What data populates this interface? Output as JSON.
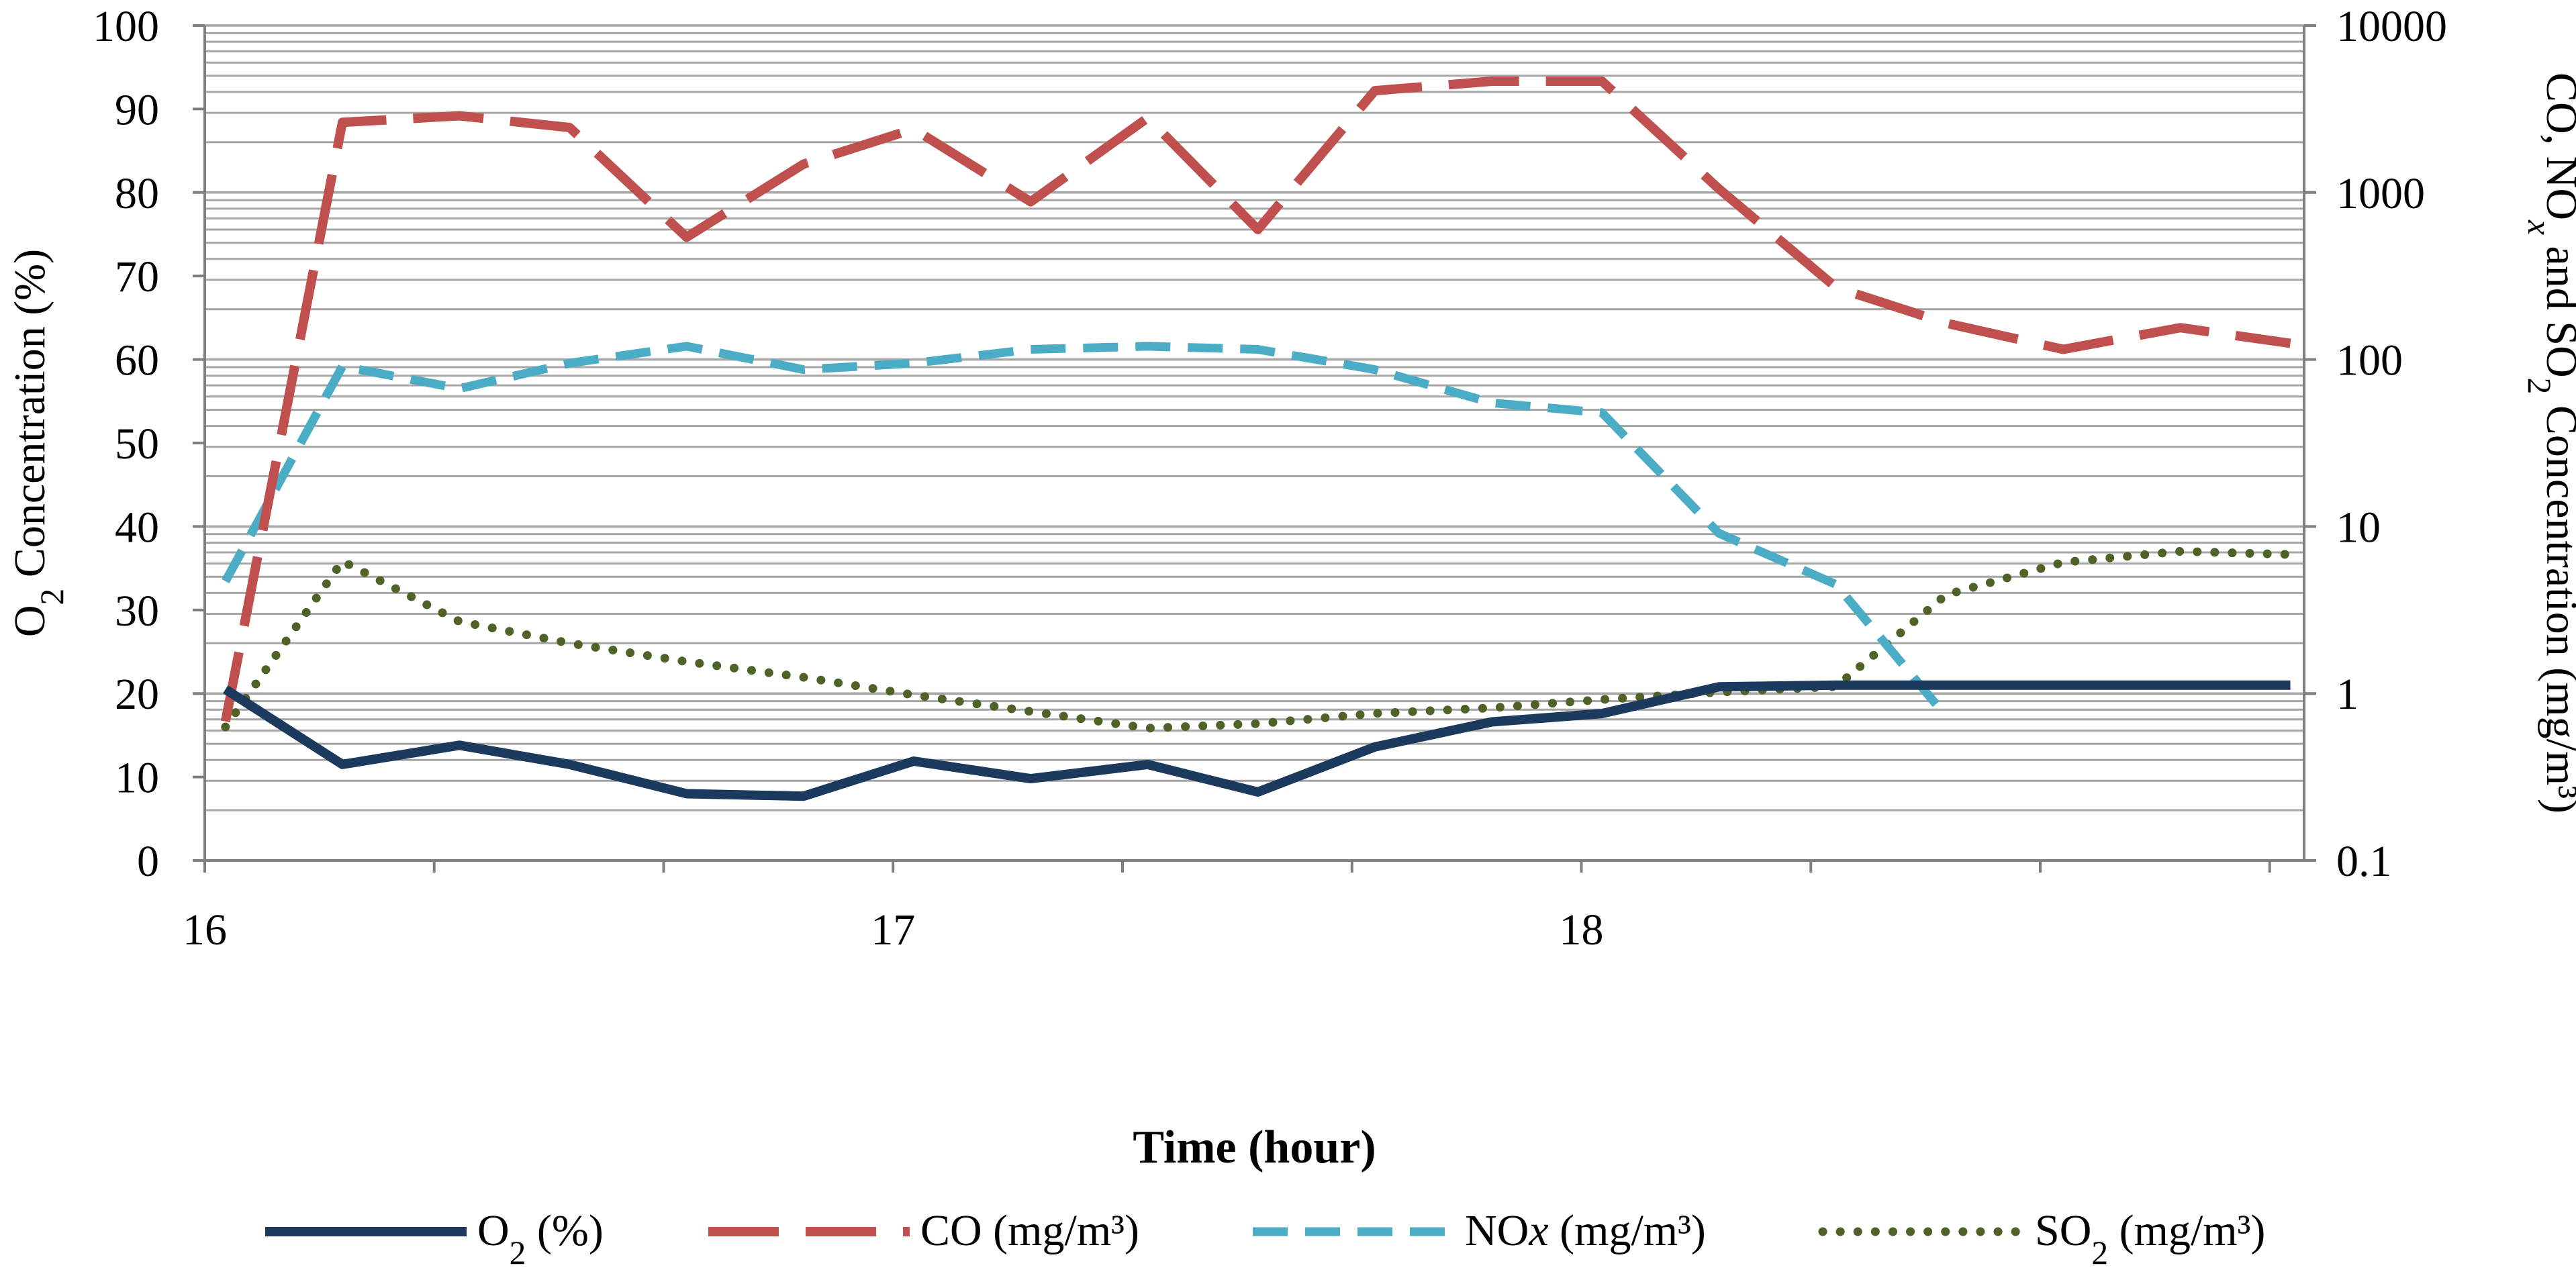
{
  "chart_data": {
    "type": "line",
    "xlabel": "Time (hour)",
    "y_left": {
      "label_parts": [
        "O",
        "2",
        " Concentration (%)"
      ],
      "range": [
        0,
        100
      ],
      "ticks": [
        "0",
        "10",
        "20",
        "30",
        "40",
        "50",
        "60",
        "70",
        "80",
        "90",
        "100"
      ]
    },
    "y_right": {
      "scale": "log",
      "label_parts": [
        "CO, NO",
        "x",
        " and SO",
        "2",
        " Concentration (mg/m³)"
      ],
      "range": [
        0.1,
        10000
      ],
      "ticks": [
        "0.1",
        "1",
        "10",
        "100",
        "1000",
        "10000"
      ]
    },
    "x_axis": {
      "range": [
        16,
        19.05
      ],
      "tick_labels": [
        {
          "value": 16,
          "label": "16"
        },
        {
          "value": 17,
          "label": "17"
        },
        {
          "value": 18,
          "label": "18"
        }
      ]
    },
    "grid": true,
    "legend_position": "bottom",
    "series": [
      {
        "name": "O2 (%)",
        "legend_parts": [
          "O",
          "2",
          " (%)"
        ],
        "axis": "left",
        "color": "#1b3a5e",
        "style": "solid",
        "x": [
          16.03,
          16.2,
          16.37,
          16.53,
          16.7,
          16.87,
          17.03,
          17.2,
          17.37,
          17.53,
          17.7,
          17.87,
          18.03,
          18.2,
          18.37,
          18.53,
          18.7,
          18.87,
          19.03
        ],
        "values": [
          20.5,
          11.5,
          13.8,
          11.5,
          8.0,
          7.7,
          11.9,
          9.8,
          11.5,
          8.2,
          13.6,
          16.6,
          17.6,
          20.8,
          21.0,
          21.0,
          21.0,
          21.0,
          21.0
        ]
      },
      {
        "name": "CO (mg/m³)",
        "legend_parts": [
          "CO (mg/m³)"
        ],
        "axis": "right",
        "color": "#c0504d",
        "style": "long-dash",
        "x": [
          16.03,
          16.2,
          16.37,
          16.53,
          16.7,
          16.87,
          17.03,
          17.2,
          17.37,
          17.53,
          17.7,
          17.87,
          18.03,
          18.2,
          18.37,
          18.53,
          18.7,
          18.87,
          19.03
        ],
        "values": [
          0.68,
          2630,
          2880,
          2450,
          540,
          1480,
          2400,
          880,
          2800,
          600,
          4070,
          4640,
          4640,
          1050,
          270,
          165,
          115,
          155,
          125
        ]
      },
      {
        "name": "NOx (mg/m³)",
        "legend_parts": [
          "NO",
          "x",
          " (mg/m³)"
        ],
        "axis": "right",
        "color": "#4bacc6",
        "style": "dash",
        "x": [
          16.03,
          16.2,
          16.37,
          16.53,
          16.7,
          16.87,
          17.03,
          17.2,
          17.37,
          17.53,
          17.7,
          17.87,
          18.03,
          18.2,
          18.37,
          18.53
        ],
        "values": [
          4.7,
          91,
          67,
          95,
          120,
          87,
          95,
          115,
          120,
          115,
          87,
          55,
          48,
          9.1,
          4.5,
          0.73
        ]
      },
      {
        "name": "SO2 (mg/m³)",
        "legend_parts": [
          "SO",
          "2",
          " (mg/m³)"
        ],
        "axis": "right",
        "color": "#4f6228",
        "style": "dot",
        "x": [
          16.03,
          16.2,
          16.37,
          16.53,
          16.7,
          16.87,
          17.03,
          17.2,
          17.37,
          17.53,
          17.7,
          17.87,
          18.03,
          18.2,
          18.37,
          18.53,
          18.7,
          18.87,
          19.03
        ],
        "values": [
          0.63,
          6.2,
          2.7,
          2.0,
          1.55,
          1.25,
          0.98,
          0.78,
          0.62,
          0.66,
          0.76,
          0.82,
          0.92,
          1.02,
          1.1,
          3.9,
          6.1,
          7.1,
          6.8
        ]
      }
    ]
  }
}
